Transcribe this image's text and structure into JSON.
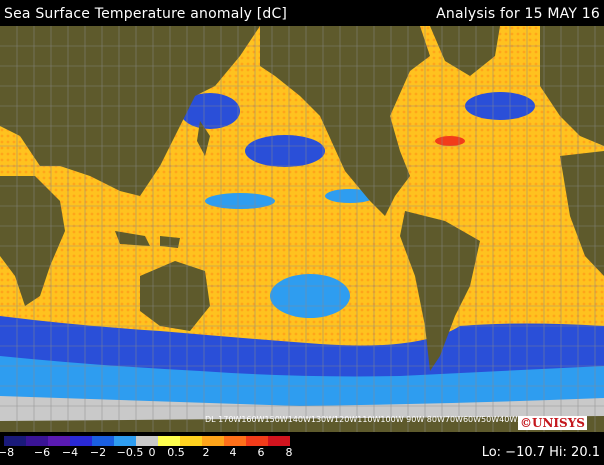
{
  "header": {
    "title": "Sea Surface Temperature anomaly [dC]",
    "analysis_label": "Analysis for 15 MAY 16"
  },
  "map": {
    "longitude_labels": "DL 170W160W150W140W130W120W110W100W 90W 80W70W60W50W40W30W20W10W"
  },
  "colorbar": {
    "tick_labels": [
      "−8",
      "−6",
      "−4",
      "−2",
      "−0.5",
      "0",
      "0.5",
      "2",
      "4",
      "6",
      "8"
    ],
    "colors": [
      "#1a1a7a",
      "#3a1496",
      "#5a1ab2",
      "#2a2ad6",
      "#1a5fe0",
      "#2e9df0",
      "#c9c9c9",
      "#ffff4d",
      "#ffd21f",
      "#ffa51a",
      "#ff701a",
      "#f23c1a",
      "#d2141e"
    ]
  },
  "footer": {
    "logo": "©UNISYS",
    "lo_hi": "Lo: −10.7 Hi: 20.1"
  },
  "colors": {
    "land": "#5e5a2c",
    "ocean_warm": "#ffc21f",
    "ocean_cool": "#2a4fd8",
    "grid": "#8a8a8a"
  }
}
